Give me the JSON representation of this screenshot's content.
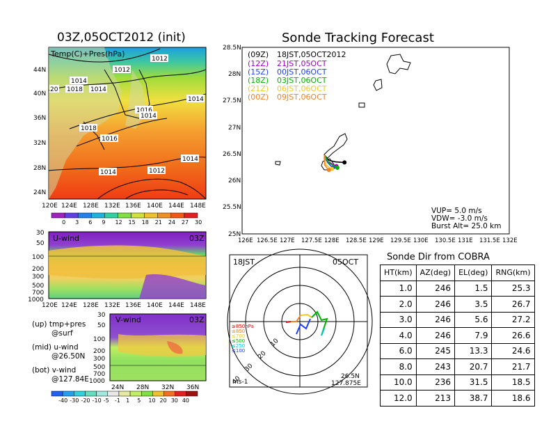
{
  "left_title": "03Z,05OCT2012 (init)",
  "right_title": "Sonde Tracking Forecast",
  "map": {
    "label": "Temp(C)+Pres(hPa)",
    "lat_ticks": [
      "44N",
      "40N",
      "36N",
      "32N",
      "28N",
      "24N"
    ],
    "lon_ticks": [
      "120E",
      "124E",
      "128E",
      "132E",
      "136E",
      "140E",
      "144E",
      "148E"
    ],
    "isobar_labels": [
      "1012",
      "1012",
      "1012",
      "1018",
      "1014",
      "1016",
      "20",
      "1014",
      "1016",
      "1018",
      "1016",
      "1014",
      "1014",
      "1012"
    ],
    "colorbar_labels": [
      "0",
      "3",
      "6",
      "9",
      "12",
      "15",
      "18",
      "21",
      "24",
      "27",
      "30"
    ]
  },
  "uwind": {
    "label": "U-wind",
    "time": "03Z",
    "p_ticks": [
      "30",
      "50",
      "100",
      "200",
      "300",
      "500",
      "700",
      "1000"
    ],
    "lon_ticks": [
      "120E",
      "124E",
      "128E",
      "132E",
      "136E",
      "140E",
      "144E",
      "148E"
    ]
  },
  "vwind": {
    "label": "V-wind",
    "time": "03Z",
    "p_ticks": [
      "30",
      "50",
      "100",
      "200",
      "300",
      "500",
      "700",
      "1000"
    ],
    "lat_ticks": [
      "24N",
      "28N",
      "32N",
      "36N"
    ],
    "colorbar_labels": [
      "-40",
      "-30",
      "-20",
      "-10",
      "-5",
      "-1",
      "1",
      "5",
      "10",
      "20",
      "30",
      "40"
    ]
  },
  "notes": [
    "(up) tmp+pres",
    "@surf",
    "(mid) u-wind",
    "@26.50N",
    "(bot) v-wind",
    "@127.84E"
  ],
  "track": {
    "lat_ticks": [
      "28.5N",
      "28N",
      "27.5N",
      "27N",
      "26.5N",
      "26N",
      "25.5N",
      "25N"
    ],
    "lon_ticks": [
      "126E",
      "126.5E",
      "127E",
      "127.5E",
      "128E",
      "128.5E",
      "129E",
      "129.5E",
      "130E",
      "130.5E",
      "131E",
      "131.5E",
      "132E"
    ],
    "legend": [
      {
        "code": "(09Z)",
        "text": "18JST,05OCT2012",
        "color": "#000000"
      },
      {
        "code": "(12Z)",
        "text": "21JST,05OCT",
        "color": "#a000c8"
      },
      {
        "code": "(15Z)",
        "text": "00JST,06OCT",
        "color": "#1e3cff"
      },
      {
        "code": "(18Z)",
        "text": "03JST,06OCT",
        "color": "#00b400"
      },
      {
        "code": "(21Z)",
        "text": "06JST,06OCT",
        "color": "#f0c828"
      },
      {
        "code": "(00Z)",
        "text": "09JST,06OCT",
        "color": "#f08228"
      }
    ],
    "vup": "VUP=  5.0  m/s",
    "vdw": "VDW= -3.0  m/s",
    "burst": "Burst Alt=  25.0  km"
  },
  "polar": {
    "time_jst": "18JST",
    "date": "05OCT",
    "ring_labels": [
      "10",
      "20",
      "30",
      "40"
    ],
    "levels": [
      {
        "text": "≥850hPa",
        "color": "#e60000"
      },
      {
        "text": "≤850",
        "color": "#f08228"
      },
      {
        "text": "≤700",
        "color": "#f0c828"
      },
      {
        "text": "≤500",
        "color": "#00b400"
      },
      {
        "text": "≤250",
        "color": "#00c8c8"
      },
      {
        "text": "≤100",
        "color": "#1e3cff"
      }
    ],
    "unit": "ms-1",
    "lat": "26.5N",
    "lon": "127.875E"
  },
  "table": {
    "title": "Sonde Dir from COBRA",
    "headers": [
      "HT(km)",
      "AZ(deg)",
      "EL(deg)",
      "RNG(km)"
    ],
    "rows": [
      [
        "1.0",
        "246",
        "1.5",
        "25.3"
      ],
      [
        "2.0",
        "246",
        "3.5",
        "26.7"
      ],
      [
        "3.0",
        "246",
        "5.6",
        "27.2"
      ],
      [
        "4.0",
        "246",
        "7.9",
        "26.6"
      ],
      [
        "6.0",
        "245",
        "13.3",
        "24.6"
      ],
      [
        "8.0",
        "243",
        "20.7",
        "21.7"
      ],
      [
        "10.0",
        "236",
        "31.5",
        "18.5"
      ],
      [
        "12.0",
        "213",
        "38.7",
        "18.6"
      ]
    ]
  },
  "chart_data": [
    {
      "type": "table",
      "title": "Sonde Dir from COBRA",
      "columns": [
        "HT(km)",
        "AZ(deg)",
        "EL(deg)",
        "RNG(km)"
      ],
      "rows": [
        [
          1.0,
          246,
          1.5,
          25.3
        ],
        [
          2.0,
          246,
          3.5,
          26.7
        ],
        [
          3.0,
          246,
          5.6,
          27.2
        ],
        [
          4.0,
          246,
          7.9,
          26.6
        ],
        [
          6.0,
          245,
          13.3,
          24.6
        ],
        [
          8.0,
          243,
          20.7,
          21.7
        ],
        [
          10.0,
          236,
          31.5,
          18.5
        ],
        [
          12.0,
          213,
          38.7,
          18.6
        ]
      ]
    },
    {
      "type": "line",
      "title": "Sonde Tracking Forecast",
      "xlim": [
        126,
        132
      ],
      "ylim": [
        25,
        28.5
      ],
      "series": [
        {
          "name": "(09Z) 18JST,05OCT2012",
          "points": [
            [
              127.85,
              26.48
            ],
            [
              127.95,
              26.38
            ],
            [
              128.1,
              26.35
            ],
            [
              128.3,
              26.34
            ]
          ]
        },
        {
          "name": "(12Z) 21JST,05OCT",
          "points": [
            [
              127.85,
              26.48
            ],
            [
              127.93,
              26.36
            ],
            [
              128.05,
              26.3
            ],
            [
              128.12,
              26.27
            ]
          ]
        },
        {
          "name": "(15Z) 00JST,06OCT",
          "points": [
            [
              127.85,
              26.48
            ],
            [
              127.92,
              26.34
            ],
            [
              128.0,
              26.27
            ],
            [
              128.05,
              26.25
            ]
          ]
        },
        {
          "name": "(18Z) 03JST,06OCT",
          "points": [
            [
              127.85,
              26.48
            ],
            [
              127.95,
              26.33
            ],
            [
              128.08,
              26.27
            ],
            [
              128.14,
              26.24
            ]
          ]
        },
        {
          "name": "(21Z) 06JST,06OCT",
          "points": [
            [
              127.85,
              26.48
            ],
            [
              127.88,
              26.3
            ],
            [
              127.98,
              26.23
            ],
            [
              128.02,
              26.22
            ]
          ]
        },
        {
          "name": "(00Z) 09JST,06OCT",
          "points": [
            [
              127.85,
              26.48
            ],
            [
              127.85,
              26.3
            ],
            [
              127.92,
              26.22
            ],
            [
              127.95,
              26.2
            ]
          ]
        }
      ]
    }
  ]
}
